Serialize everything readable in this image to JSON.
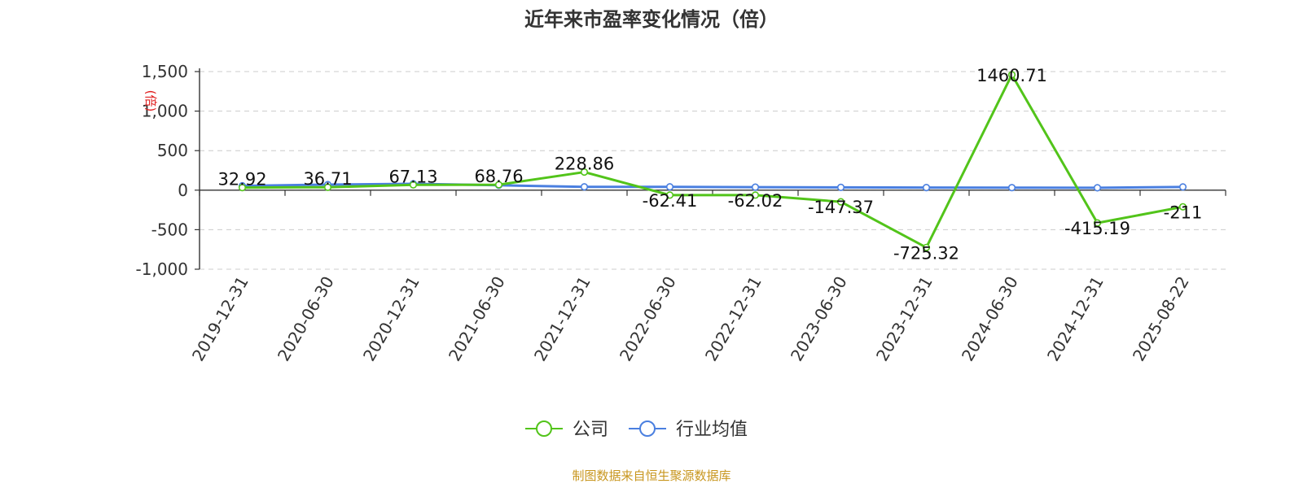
{
  "chart_data": {
    "type": "line",
    "title": "近年来市盈率变化情况（倍）",
    "ylabel": "(倍)",
    "ylim": [
      -1000,
      1500
    ],
    "yticks": [
      1500,
      1000,
      500,
      0,
      -500,
      -1000
    ],
    "ytick_labels": [
      "1,500",
      "1,000",
      "500",
      "0",
      "-500",
      "-1,000"
    ],
    "grid": true,
    "legend_position": "bottom-center",
    "categories": [
      "2019-12-31",
      "2020-06-30",
      "2020-12-31",
      "2021-06-30",
      "2021-12-31",
      "2022-06-30",
      "2022-12-31",
      "2023-06-30",
      "2023-12-31",
      "2024-06-30",
      "2024-12-31",
      "2025-08-22"
    ],
    "series": [
      {
        "name": "公司",
        "color": "#52c41a",
        "values": [
          32.92,
          36.71,
          67.13,
          68.76,
          228.86,
          -62.41,
          -62.02,
          -147.37,
          -725.32,
          1460.71,
          -415.19,
          -211
        ],
        "labels": [
          "32.92",
          "36.71",
          "67.13",
          "68.76",
          "228.86",
          "-62.41",
          "-62.02",
          "-147.37",
          "-725.32",
          "1460.71",
          "-415.19",
          "-211"
        ]
      },
      {
        "name": "行业均值",
        "color": "#4a7fe0",
        "values": [
          55,
          70,
          80,
          62,
          42,
          42,
          38,
          35,
          33,
          32,
          30,
          40
        ]
      }
    ]
  },
  "source_note": "制图数据来自恒生聚源数据库"
}
